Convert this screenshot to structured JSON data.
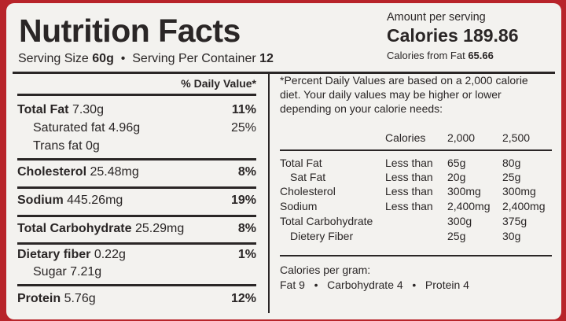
{
  "title": "Nutrition Facts",
  "serving": {
    "size_label": "Serving Size",
    "size_value": "60g",
    "sep": "•",
    "container_label": "Serving Per Container",
    "container_value": "12"
  },
  "amount_label": "Amount per serving",
  "calories_text": "Calories 189.86",
  "calories_from_fat_label": "Calories from Fat",
  "calories_from_fat_value": "65.66",
  "dv_header": "% Daily Value*",
  "nutrients": [
    {
      "label": "Total Fat",
      "amount": "7.30g",
      "dv": "11%"
    },
    {
      "label": "Saturated fat",
      "amount": "4.96g",
      "dv": "25%"
    },
    {
      "label": "Trans fat",
      "amount": "0g",
      "dv": ""
    },
    {
      "label": "Cholesterol",
      "amount": "25.48mg",
      "dv": "8%"
    },
    {
      "label": "Sodium",
      "amount": "445.26mg",
      "dv": "19%"
    },
    {
      "label": "Total Carbohydrate",
      "amount": "25.29mg",
      "dv": "8%"
    },
    {
      "label": "Dietary fiber",
      "amount": "0.22g",
      "dv": "1%"
    },
    {
      "label": "Sugar",
      "amount": "7.21g",
      "dv": ""
    },
    {
      "label": "Protein",
      "amount": "5.76g",
      "dv": "12%"
    }
  ],
  "footnote": "*Percent Daily Values are based on a 2,000 calorie diet. Your daily values may be higher or lower depending on your calorie needs:",
  "table": {
    "headers": [
      "Calories",
      "2,000",
      "2,500"
    ],
    "rows": [
      {
        "label": "Total Fat",
        "limit": "Less than",
        "v2000": "65g",
        "v2500": "80g"
      },
      {
        "label": "Sat Fat",
        "limit": "Less than",
        "v2000": "20g",
        "v2500": "25g"
      },
      {
        "label": "Cholesterol",
        "limit": "Less than",
        "v2000": "300mg",
        "v2500": "300mg"
      },
      {
        "label": "Sodium",
        "limit": "Less than",
        "v2000": "2,400mg",
        "v2500": "2,400mg"
      },
      {
        "label": "Total Carbohydrate",
        "limit": "",
        "v2000": "300g",
        "v2500": "375g"
      },
      {
        "label": "Dietery Fiber",
        "limit": "",
        "v2000": "25g",
        "v2500": "30g"
      }
    ]
  },
  "calories_per_gram": {
    "label": "Calories per gram:",
    "fat": "Fat 9",
    "sep": "•",
    "carb": "Carbohydrate 4",
    "protein": "Protein 4"
  },
  "colors": {
    "background": "#b8242a",
    "label": "#f3f2ef",
    "ink": "#2a2626"
  }
}
